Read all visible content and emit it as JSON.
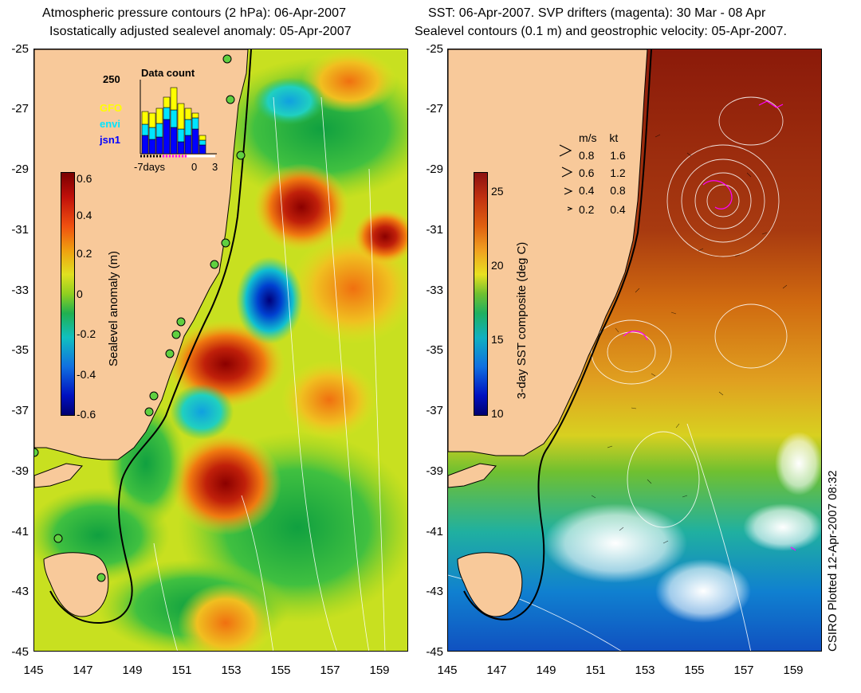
{
  "left_panel": {
    "title_line1": "Atmospheric pressure contours (2 hPa): 06-Apr-2007",
    "title_line2": "Isostatically adjusted sealevel anomaly: 05-Apr-2007",
    "colorbar_label": "Sealevel anomaly (m)",
    "colorbar_ticks": [
      "0.6",
      "0.4",
      "0.2",
      "0",
      "-0.2",
      "-0.4",
      "-0.6"
    ],
    "inset": {
      "title": "Data count",
      "ymax_label": "250",
      "legend": [
        {
          "label": "GFO",
          "color": "#ffff00"
        },
        {
          "label": "envi",
          "color": "#00e5ff"
        },
        {
          "label": "jsn1",
          "color": "#0000ff"
        }
      ],
      "x_ticks": [
        "-7days",
        "0",
        "3"
      ]
    }
  },
  "right_panel": {
    "title_line1": "SST: 06-Apr-2007. SVP drifters (magenta): 30 Mar - 08 Apr",
    "title_line2": "Sealevel contours (0.1 m) and geostrophic velocity: 05-Apr-2007.",
    "colorbar_label": "3-day SST composite (deg C)",
    "colorbar_ticks": [
      "25",
      "20",
      "15",
      "10"
    ],
    "velocity_key": {
      "header_ms": "m/s",
      "header_kt": "kt",
      "rows": [
        {
          "ms": "0.8",
          "kt": "1.6"
        },
        {
          "ms": "0.6",
          "kt": "1.2"
        },
        {
          "ms": "0.4",
          "kt": "0.8"
        },
        {
          "ms": "0.2",
          "kt": "0.4"
        }
      ]
    }
  },
  "axes": {
    "y_ticks": [
      "-25",
      "-27",
      "-29",
      "-31",
      "-33",
      "-35",
      "-37",
      "-39",
      "-41",
      "-43",
      "-45"
    ],
    "x_ticks": [
      "145",
      "147",
      "149",
      "151",
      "153",
      "155",
      "157",
      "159"
    ]
  },
  "credit": "CSIRO Plotted 12-Apr-2007 08:32",
  "colors": {
    "land": "#f8c99a",
    "coast": "#000000",
    "drifters": "#ff00ff"
  }
}
